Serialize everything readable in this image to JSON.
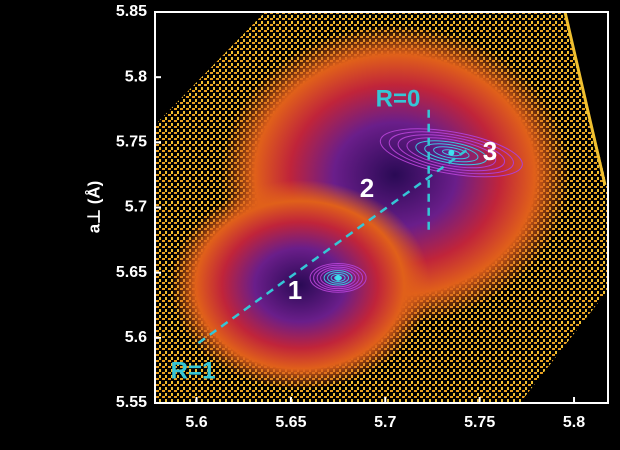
{
  "chart_data": {
    "type": "contour",
    "ylabel": "a⊥ (Å)",
    "xlim": [
      5.578,
      5.818
    ],
    "ylim": [
      5.55,
      5.85
    ],
    "xticks": [
      5.6,
      5.65,
      5.7,
      5.75,
      5.8
    ],
    "yticks": [
      5.55,
      5.6,
      5.65,
      5.7,
      5.75,
      5.8,
      5.85
    ],
    "peaks": {
      "x": [
        5.675,
        5.735
      ],
      "y": [
        5.646,
        5.742
      ]
    },
    "relaxation_line": {
      "x": [
        5.601,
        5.745
      ],
      "y": [
        5.596,
        5.746
      ],
      "color": "#35c6d6"
    },
    "pseudomorphic_line": {
      "x": [
        5.723,
        5.723
      ],
      "y": [
        5.775,
        5.681
      ],
      "color": "#35c6d6"
    },
    "annotations": [
      "R=0",
      "R=1",
      "1",
      "2",
      "3"
    ]
  }
}
